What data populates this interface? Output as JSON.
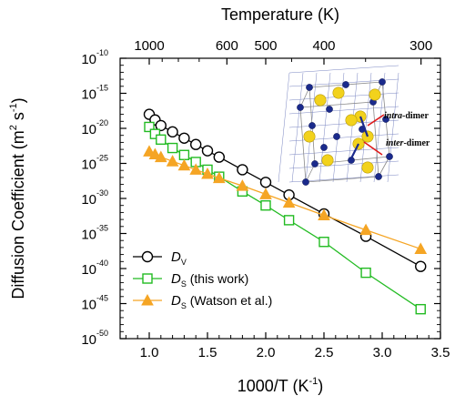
{
  "chart_data": {
    "type": "line",
    "xlabel": {
      "main": "1000/T (K",
      "sup": "-1",
      "tail": ")"
    },
    "ylabel": {
      "main": "Diffusion Coefficient (m",
      "sup1": "2",
      "mid": " s",
      "sup2": "-1",
      "tail": ")"
    },
    "top_xlabel": "Temperature (K)",
    "xlim": [
      0.75,
      3.5
    ],
    "ylim": [
      -50,
      -10
    ],
    "y_scale": "log",
    "x_ticks": [
      {
        "v": 1.0,
        "label": "1.0"
      },
      {
        "v": 1.5,
        "label": "1.5"
      },
      {
        "v": 2.0,
        "label": "2.0"
      },
      {
        "v": 2.5,
        "label": "2.5"
      },
      {
        "v": 3.0,
        "label": "3.0"
      },
      {
        "v": 3.5,
        "label": "3.5"
      }
    ],
    "top_ticks": [
      {
        "T": 1000,
        "label": "1000"
      },
      {
        "T": 600,
        "label": "600"
      },
      {
        "T": 500,
        "label": "500"
      },
      {
        "T": 400,
        "label": "400"
      },
      {
        "T": 300,
        "label": "300"
      }
    ],
    "y_ticks": [
      {
        "exp": -10,
        "base": "10",
        "sup": "-10"
      },
      {
        "exp": -15,
        "base": "10",
        "sup": "-15"
      },
      {
        "exp": -20,
        "base": "10",
        "sup": "-20"
      },
      {
        "exp": -25,
        "base": "10",
        "sup": "-25"
      },
      {
        "exp": -30,
        "base": "10",
        "sup": "-30"
      },
      {
        "exp": -35,
        "base": "10",
        "sup": "-35"
      },
      {
        "exp": -40,
        "base": "10",
        "sup": "-40"
      },
      {
        "exp": -45,
        "base": "10",
        "sup": "-45"
      },
      {
        "exp": -50,
        "base": "10",
        "sup": "-50"
      }
    ],
    "series": [
      {
        "sym": "D",
        "sub": "V",
        "suffix": "",
        "marker": "circle",
        "color": "#000000",
        "x": [
          1.0,
          1.05,
          1.1,
          1.2,
          1.3,
          1.4,
          1.5,
          1.6,
          1.8,
          2.0,
          2.2,
          2.5,
          2.86,
          3.33
        ],
        "logy": [
          -18.0,
          -18.8,
          -19.6,
          -20.5,
          -21.4,
          -22.3,
          -23.2,
          -24.1,
          -25.9,
          -27.7,
          -29.5,
          -32.2,
          -35.4,
          -39.7
        ]
      },
      {
        "sym": "D",
        "sub": "S",
        "suffix": " (this work)",
        "marker": "square",
        "color": "#22bb22",
        "x": [
          1.0,
          1.05,
          1.1,
          1.2,
          1.3,
          1.4,
          1.5,
          1.6,
          1.8,
          2.0,
          2.2,
          2.5,
          2.86,
          3.33
        ],
        "logy": [
          -19.8,
          -20.8,
          -21.6,
          -22.8,
          -23.8,
          -24.8,
          -25.9,
          -26.9,
          -29.0,
          -31.0,
          -33.1,
          -36.2,
          -40.6,
          -45.8
        ]
      },
      {
        "sym": "D",
        "sub": "S",
        "suffix": " (Watson et al.)",
        "marker": "triangle",
        "color": "#f5a524",
        "x": [
          1.0,
          1.05,
          1.1,
          1.2,
          1.3,
          1.4,
          1.5,
          1.6,
          1.8,
          2.0,
          2.2,
          2.5,
          2.86,
          3.33
        ],
        "logy": [
          -23.3,
          -23.7,
          -24.1,
          -24.7,
          -25.3,
          -25.9,
          -26.5,
          -27.1,
          -28.2,
          -29.4,
          -30.6,
          -32.4,
          -34.5,
          -37.2
        ]
      }
    ],
    "inset": {
      "label_intra": {
        "italic": "intra",
        "rest": "-dimer"
      },
      "label_inter": {
        "italic": "inter",
        "rest": "-dimer"
      }
    }
  }
}
